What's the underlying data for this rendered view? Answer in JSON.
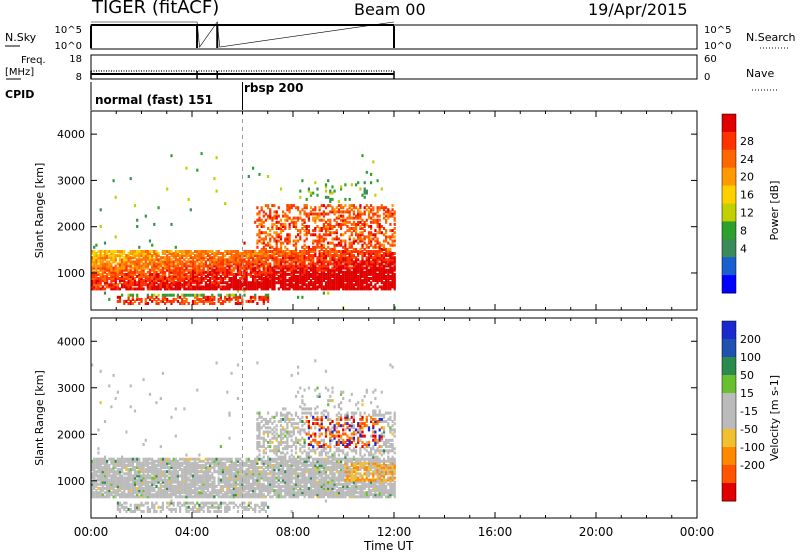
{
  "header": {
    "station_label": "TIGER (fitACF)",
    "beam_label": "Beam 00",
    "date_label": "19/Apr/2015"
  },
  "side_labels": {
    "nsky": "N.Sky",
    "freq_line1": "Freq.",
    "freq_line2": "[MHz]",
    "cpid": "CPID",
    "nsearch": "N.Search",
    "nave": "Nave"
  },
  "cpid_labels": [
    "normal (fast) 151",
    "rbsp 200"
  ],
  "colors": {
    "power_scale": [
      "#0000ff",
      "#1a5fd0",
      "#3a8a5a",
      "#2ca02c",
      "#c0d000",
      "#ffd000",
      "#ff9900",
      "#ff6600",
      "#ff3300",
      "#e00000"
    ],
    "velocity_scale": [
      "#1a2ad0",
      "#2050b0",
      "#2c8a4c",
      "#68c030",
      "#bbbbbb",
      "#bbbbbb",
      "#f0c030",
      "#ff8800",
      "#ff5500",
      "#e00000"
    ]
  },
  "chart_data": [
    {
      "type": "line",
      "panel": "noise",
      "left_ticks": [
        "10^5",
        "10^0"
      ],
      "right_ticks": [
        "10^5",
        "10^0"
      ],
      "series": [
        {
          "name": "N.Sky",
          "x": [
            0,
            4.2,
            4.3,
            5.0,
            5.1,
            12.0
          ],
          "y": [
            5,
            5,
            0,
            5,
            0,
            5
          ]
        },
        {
          "name": "N.Search",
          "x": [
            0,
            12.0
          ],
          "y": [
            5,
            5
          ]
        }
      ]
    },
    {
      "type": "line",
      "panel": "frequency",
      "left_ticks": [
        "18",
        "8"
      ],
      "right_ticks": [
        "60",
        "0"
      ],
      "series": [
        {
          "name": "Freq.",
          "x": [
            0,
            12
          ],
          "y": [
            11.5,
            11.5
          ]
        },
        {
          "name": "Nave",
          "x": [
            0,
            12
          ],
          "y": [
            10,
            10
          ]
        }
      ]
    },
    {
      "type": "heatmap",
      "panel": "power",
      "ylabel": "Slant Range [km]",
      "yticks": [
        "4000",
        "3000",
        "2000",
        "1000"
      ],
      "ylim": [
        200,
        4500
      ],
      "xlim": [
        0,
        24
      ],
      "colorbar_label": "Power [dB]",
      "colorbar_ticks": [
        "28",
        "24",
        "20",
        "16",
        "12",
        "8",
        "4"
      ],
      "clim": [
        0,
        32
      ]
    },
    {
      "type": "heatmap",
      "panel": "velocity",
      "ylabel": "Slant Range [km]",
      "yticks": [
        "4000",
        "3000",
        "2000",
        "1000"
      ],
      "ylim": [
        200,
        4500
      ],
      "xlim": [
        0,
        24
      ],
      "colorbar_label": "Velocity [m s-1]",
      "colorbar_ticks": [
        "200",
        "100",
        "50",
        "15",
        "-15",
        "-50",
        "-100",
        "-200"
      ],
      "clim": [
        -250,
        250
      ],
      "xlabel": "Time UT",
      "xticks": [
        "00:00",
        "04:00",
        "08:00",
        "12:00",
        "16:00",
        "20:00",
        "00:00"
      ]
    }
  ]
}
